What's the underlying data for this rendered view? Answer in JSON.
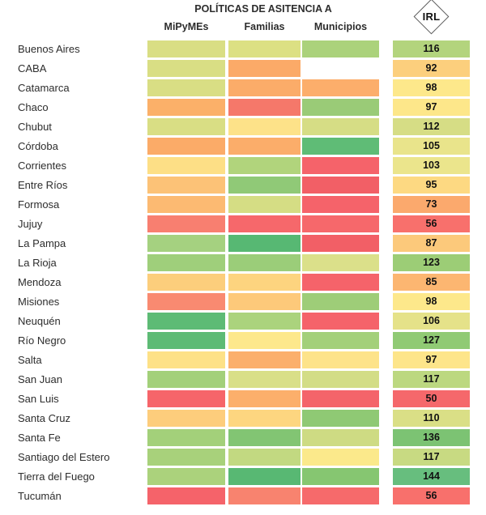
{
  "chart_data": {
    "type": "heatmap",
    "title": "POLÍTICAS DE ASITENCIA A",
    "columns": [
      "MiPyMEs",
      "Familias",
      "Municipios"
    ],
    "irl_label": "IRL",
    "legend": "none (color-scale heatmap: red = low assistance, green = high assistance)",
    "color_scale": {
      "low": "#f5636a",
      "mid": "#fde488",
      "high": "#57b872"
    },
    "rows": [
      {
        "name": "Buenos Aires",
        "cells": [
          "#d9de84",
          "#dce083",
          "#abd27b"
        ],
        "irl": 116,
        "irl_color": "#b3d47d"
      },
      {
        "name": "CABA",
        "cells": [
          "#d9de84",
          "#fbaa68",
          null
        ],
        "irl": 92,
        "irl_color": "#fccf7d"
      },
      {
        "name": "Catamarca",
        "cells": [
          "#d9de84",
          "#fbac69",
          "#fcae6b"
        ],
        "irl": 98,
        "irl_color": "#fde88b"
      },
      {
        "name": "Chaco",
        "cells": [
          "#fbb069",
          "#f5786a",
          "#9acb77"
        ],
        "irl": 97,
        "irl_color": "#fde78a"
      },
      {
        "name": "Chubut",
        "cells": [
          "#d9de84",
          "#fde289",
          "#d6dd85"
        ],
        "irl": 112,
        "irl_color": "#d6dd85"
      },
      {
        "name": "Córdoba",
        "cells": [
          "#fbab68",
          "#fbad6a",
          "#5fbc76"
        ],
        "irl": 105,
        "irl_color": "#e9e48b"
      },
      {
        "name": "Corrientes",
        "cells": [
          "#fddf86",
          "#b1d47c",
          "#f5636a"
        ],
        "irl": 103,
        "irl_color": "#ebe58c"
      },
      {
        "name": "Entre Ríos",
        "cells": [
          "#fcc277",
          "#90c977",
          "#f25f66"
        ],
        "irl": 95,
        "irl_color": "#fdd982"
      },
      {
        "name": "Formosa",
        "cells": [
          "#fcba72",
          "#d5dd84",
          "#f5636a"
        ],
        "irl": 73,
        "irl_color": "#fba96d"
      },
      {
        "name": "Jujuy",
        "cells": [
          "#f87f70",
          "#f6686b",
          "#f6686b"
        ],
        "irl": 56,
        "irl_color": "#f8706c"
      },
      {
        "name": "La Pampa",
        "cells": [
          "#a5d180",
          "#57b873",
          "#f25f66"
        ],
        "irl": 87,
        "irl_color": "#fcc97b"
      },
      {
        "name": "La Rioja",
        "cells": [
          "#9fcf7b",
          "#9bcd79",
          "#dbe08a"
        ],
        "irl": 123,
        "irl_color": "#9ccd76"
      },
      {
        "name": "Mendoza",
        "cells": [
          "#fcce7c",
          "#fdd47f",
          "#f5636a"
        ],
        "irl": 85,
        "irl_color": "#fcb671"
      },
      {
        "name": "Misiones",
        "cells": [
          "#f98a71",
          "#fdc97a",
          "#9ecd78"
        ],
        "irl": 98,
        "irl_color": "#fde88b"
      },
      {
        "name": "Neuquén",
        "cells": [
          "#5dbb75",
          "#abd37d",
          "#f5636a"
        ],
        "irl": 106,
        "irl_color": "#e5e289"
      },
      {
        "name": "Río Negro",
        "cells": [
          "#5dbb75",
          "#fde88c",
          "#a3d07a"
        ],
        "irl": 127,
        "irl_color": "#90ca74"
      },
      {
        "name": "Salta",
        "cells": [
          "#fde187",
          "#fbaf6c",
          "#fde38a"
        ],
        "irl": 97,
        "irl_color": "#fde58a"
      },
      {
        "name": "San Juan",
        "cells": [
          "#a3d07a",
          "#d9df88",
          "#d3dd86"
        ],
        "irl": 117,
        "irl_color": "#bcd880"
      },
      {
        "name": "San Luis",
        "cells": [
          "#f6656a",
          "#fcaf6b",
          "#f4646a"
        ],
        "irl": 50,
        "irl_color": "#f5686b"
      },
      {
        "name": "Santa Cruz",
        "cells": [
          "#fdcd7c",
          "#fdd680",
          "#8fc974"
        ],
        "irl": 110,
        "irl_color": "#dadf86"
      },
      {
        "name": "Santa Fe",
        "cells": [
          "#a3d07a",
          "#82c573",
          "#cedb83"
        ],
        "irl": 136,
        "irl_color": "#7cc373"
      },
      {
        "name": "Santiago del Estero",
        "cells": [
          "#a8d17b",
          "#c2d981",
          "#fbe98b"
        ],
        "irl": 117,
        "irl_color": "#c8da82"
      },
      {
        "name": "Tierra del Fuego",
        "cells": [
          "#abd27c",
          "#58b873",
          "#86c671"
        ],
        "irl": 144,
        "irl_color": "#67be7e"
      },
      {
        "name": "Tucumán",
        "cells": [
          "#f5636a",
          "#f8836f",
          "#f66a6b"
        ],
        "irl": 56,
        "irl_color": "#f8706c"
      }
    ]
  }
}
